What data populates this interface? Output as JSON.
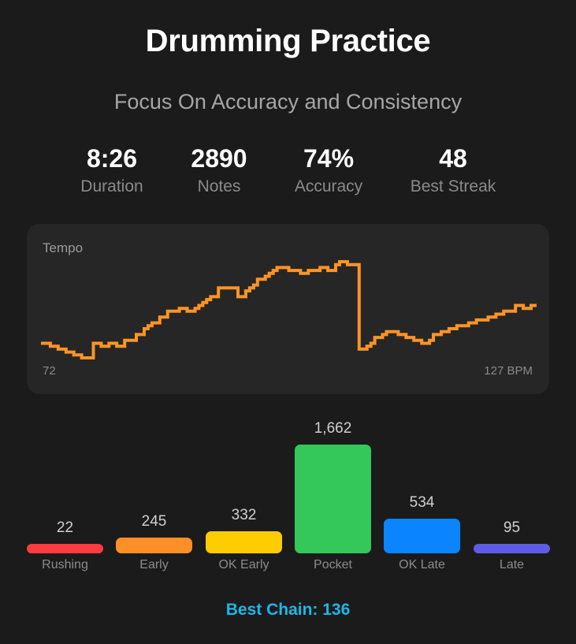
{
  "header": {
    "title": "Drumming Practice",
    "subtitle": "Focus On Accuracy and Consistency"
  },
  "stats": [
    {
      "value": "8:26",
      "label": "Duration"
    },
    {
      "value": "2890",
      "label": "Notes"
    },
    {
      "value": "74%",
      "label": "Accuracy"
    },
    {
      "value": "48",
      "label": "Best Streak"
    }
  ],
  "tempo_card": {
    "label": "Tempo",
    "min_label": "72",
    "max_label": "127 BPM",
    "line_color": "#ff9426"
  },
  "footer": {
    "best_chain": "Best Chain: 136"
  },
  "chart_data": [
    {
      "type": "line",
      "title": "Tempo",
      "xlabel": "",
      "ylabel": "BPM",
      "ylim": [
        72,
        127
      ],
      "grid": false,
      "legend": "none",
      "annotations": [
        "72",
        "127 BPM"
      ],
      "style": "step",
      "series": [
        {
          "name": "Tempo",
          "color": "#ff9426",
          "x": [
            0,
            1,
            2,
            3,
            4,
            5,
            6,
            7,
            8,
            9,
            10,
            11,
            12,
            13,
            14,
            15,
            16,
            17,
            18,
            19,
            20,
            21,
            22,
            23,
            24,
            25,
            26,
            27,
            28,
            29,
            30,
            31,
            32,
            33,
            34,
            35,
            36,
            37,
            38,
            39,
            40,
            41,
            42,
            43,
            44,
            45,
            46,
            47,
            48,
            49,
            50,
            51,
            52,
            53,
            54,
            55,
            56,
            57,
            58,
            59,
            60,
            61,
            62,
            63,
            64,
            65,
            66,
            67,
            68,
            69,
            70,
            71,
            72,
            73,
            74,
            75,
            76,
            77,
            78,
            79,
            80,
            81,
            82,
            83,
            84,
            85,
            86,
            87,
            88,
            89,
            90,
            91,
            92,
            93,
            94,
            95,
            96,
            97,
            98,
            99,
            100,
            101,
            102,
            103,
            104,
            105,
            106,
            107,
            108,
            109,
            110,
            111,
            112,
            113,
            114,
            115,
            116,
            117,
            118,
            119,
            120,
            121,
            122,
            123,
            124,
            125,
            126
          ],
          "values": [
            75,
            75,
            74,
            74,
            73,
            73,
            72,
            72,
            71,
            71,
            70,
            70,
            70,
            75,
            75,
            74,
            74,
            75,
            75,
            74,
            74,
            76,
            76,
            76,
            78,
            78,
            80,
            81,
            82,
            82,
            84,
            84,
            86,
            86,
            86,
            87,
            87,
            86,
            86,
            87,
            88,
            89,
            90,
            91,
            91,
            94,
            94,
            94,
            94,
            94,
            91,
            91,
            93,
            94,
            95,
            97,
            97,
            98,
            99,
            100,
            101,
            101,
            101,
            100,
            100,
            100,
            99,
            99,
            100,
            100,
            100,
            101,
            101,
            100,
            100,
            102,
            103,
            103,
            102,
            102,
            102,
            73,
            73,
            74,
            75,
            77,
            77,
            78,
            79,
            79,
            79,
            78,
            78,
            77,
            77,
            76,
            76,
            75,
            75,
            76,
            78,
            78,
            79,
            79,
            80,
            80,
            81,
            81,
            81,
            82,
            82,
            83,
            83,
            83,
            84,
            84,
            85,
            85,
            86,
            86,
            86,
            88,
            88,
            87,
            87,
            88,
            88
          ]
        }
      ]
    },
    {
      "type": "bar",
      "title": "Timing Distribution",
      "xlabel": "",
      "ylabel": "",
      "categories": [
        "Rushing",
        "Early",
        "OK Early",
        "Pocket",
        "OK Late",
        "Late"
      ],
      "values": [
        22,
        245,
        332,
        1662,
        534,
        95
      ],
      "value_labels": [
        "22",
        "245",
        "332",
        "1,662",
        "534",
        "95"
      ],
      "colors": [
        "#ff3b3f",
        "#ff8f26",
        "#ffcc00",
        "#34c759",
        "#0a84ff",
        "#5e5ce6"
      ],
      "grid": false,
      "legend": "none"
    }
  ]
}
